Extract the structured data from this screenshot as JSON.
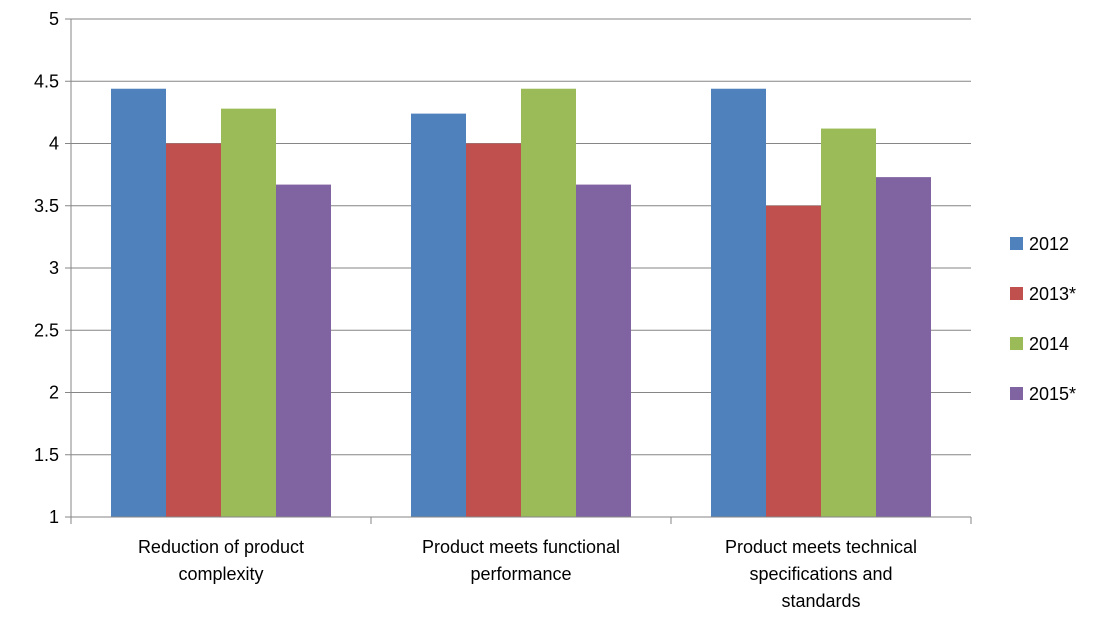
{
  "chart_data": {
    "type": "bar",
    "title": "",
    "xlabel": "",
    "ylabel": "",
    "ylim": [
      1,
      5
    ],
    "y_ticks": [
      "1",
      "1.5",
      "2",
      "2.5",
      "3",
      "3.5",
      "4",
      "4.5",
      "5"
    ],
    "grid": true,
    "legend_position": "right",
    "categories": [
      [
        "Reduction of product",
        "complexity"
      ],
      [
        "Product meets functional",
        "performance"
      ],
      [
        "Product meets technical",
        "specifications and",
        "standards"
      ]
    ],
    "series": [
      {
        "name": "2012",
        "color": "#4F81BD",
        "values": [
          4.44,
          4.24,
          4.44
        ]
      },
      {
        "name": "2013*",
        "color": "#C0504D",
        "values": [
          4.0,
          4.0,
          3.5
        ]
      },
      {
        "name": "2014",
        "color": "#9BBB59",
        "values": [
          4.28,
          4.44,
          4.12
        ]
      },
      {
        "name": "2015*",
        "color": "#8064A2",
        "values": [
          3.67,
          3.67,
          3.73
        ]
      }
    ],
    "gridline_color": "#868686"
  }
}
